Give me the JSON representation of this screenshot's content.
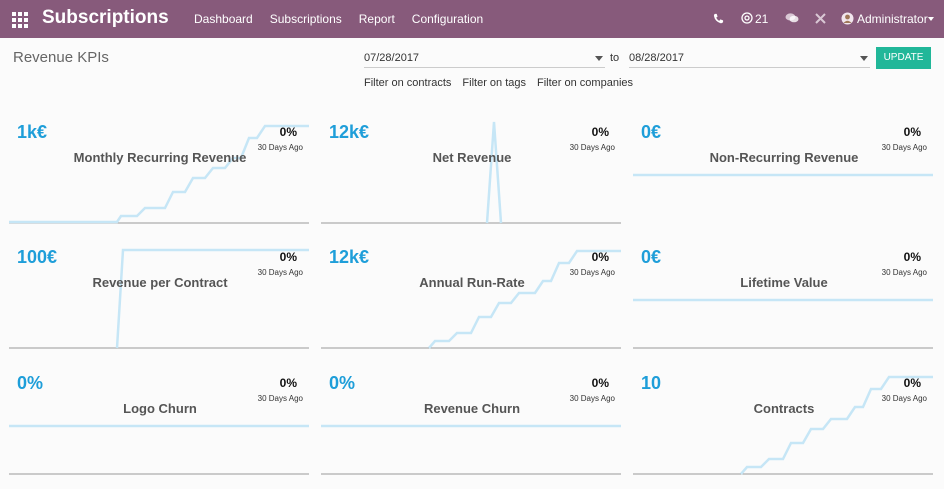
{
  "topbar": {
    "app_title": "Subscriptions",
    "nav": [
      "Dashboard",
      "Subscriptions",
      "Report",
      "Configuration"
    ],
    "messages_count": "21",
    "user": "Administrator",
    "color": "#875a7b"
  },
  "control": {
    "title": "Revenue KPIs",
    "date_from": "07/28/2017",
    "to_label": "to",
    "date_to": "08/28/2017",
    "update_label": "UPDATE",
    "filters": [
      "Filter on contracts",
      "Filter on tags",
      "Filter on companies"
    ]
  },
  "kpis": [
    {
      "value": "1k€",
      "name": "Monthly Recurring Revenue",
      "pct": "0%",
      "sub": "30 Days Ago"
    },
    {
      "value": "12k€",
      "name": "Net Revenue",
      "pct": "0%",
      "sub": "30 Days Ago"
    },
    {
      "value": "0€",
      "name": "Non-Recurring Revenue",
      "pct": "0%",
      "sub": "30 Days Ago"
    },
    {
      "value": "100€",
      "name": "Revenue per Contract",
      "pct": "0%",
      "sub": "30 Days Ago"
    },
    {
      "value": "12k€",
      "name": "Annual Run-Rate",
      "pct": "0%",
      "sub": "30 Days Ago"
    },
    {
      "value": "0€",
      "name": "Lifetime Value",
      "pct": "0%",
      "sub": "30 Days Ago"
    },
    {
      "value": "0%",
      "name": "Logo Churn",
      "pct": "0%",
      "sub": "30 Days Ago"
    },
    {
      "value": "0%",
      "name": "Revenue Churn",
      "pct": "0%",
      "sub": "30 Days Ago"
    },
    {
      "value": "10",
      "name": "Contracts",
      "pct": "0%",
      "sub": "30 Days Ago"
    }
  ],
  "chart_data": {
    "type": "line",
    "trend_shapes": [
      "step-up",
      "spike",
      "flat",
      "jump",
      "step-up",
      "flat",
      "flat",
      "flat",
      "step-up"
    ],
    "line_color": "#c6e6f6"
  }
}
